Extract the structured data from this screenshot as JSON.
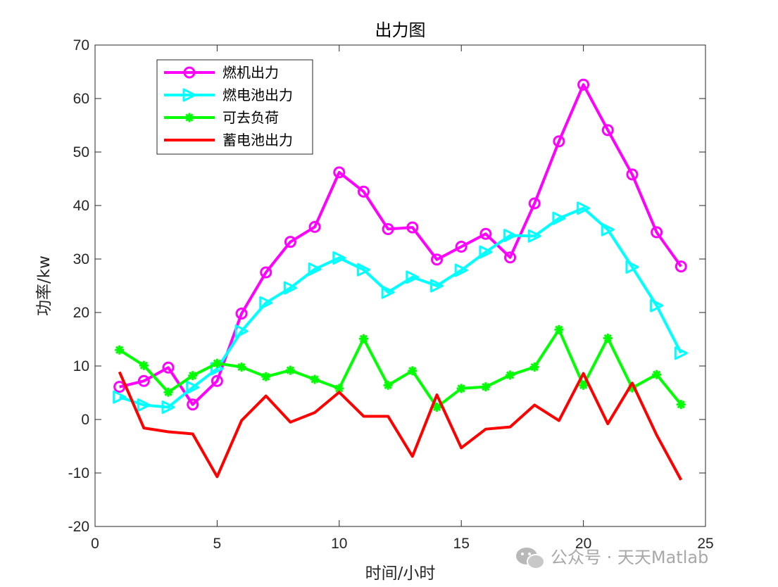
{
  "chart_data": {
    "type": "line",
    "title": "出力图",
    "xlabel": "时间/小时",
    "ylabel": "功率/kw",
    "xlim": [
      0,
      25
    ],
    "ylim": [
      -20,
      70
    ],
    "xticks": [
      0,
      5,
      10,
      15,
      20,
      25
    ],
    "yticks": [
      -20,
      -10,
      0,
      10,
      20,
      30,
      40,
      50,
      60,
      70
    ],
    "grid": false,
    "legend_position": "top-left",
    "x": [
      1,
      2,
      3,
      4,
      5,
      6,
      7,
      8,
      9,
      10,
      11,
      12,
      13,
      14,
      15,
      16,
      17,
      18,
      19,
      20,
      21,
      22,
      23,
      24
    ],
    "series": [
      {
        "name": "燃机出力",
        "color": "#ff00ff",
        "marker": "circle",
        "values": [
          6.1,
          7.2,
          9.7,
          2.8,
          7.2,
          19.8,
          27.5,
          33.2,
          36.0,
          46.2,
          42.6,
          35.6,
          35.9,
          29.9,
          32.3,
          34.7,
          30.3,
          40.4,
          52.0,
          62.6,
          54.1,
          45.8,
          35.0,
          28.6
        ]
      },
      {
        "name": "燃电池出力",
        "color": "#00ffff",
        "marker": "triangle-right",
        "values": [
          4.2,
          2.7,
          2.3,
          6.0,
          9.5,
          16.5,
          21.8,
          24.6,
          28.1,
          30.2,
          28.0,
          23.8,
          26.6,
          25.0,
          27.9,
          31.3,
          34.4,
          34.3,
          37.6,
          39.5,
          35.5,
          28.5,
          21.3,
          12.4
        ]
      },
      {
        "name": "可去负荷",
        "color": "#00ff00",
        "marker": "asterisk",
        "values": [
          13.0,
          10.1,
          5.1,
          8.2,
          10.5,
          9.8,
          8.0,
          9.2,
          7.5,
          5.8,
          15.1,
          6.4,
          9.1,
          2.3,
          5.8,
          6.1,
          8.3,
          9.8,
          16.8,
          6.4,
          15.2,
          5.9,
          8.4,
          2.8
        ]
      },
      {
        "name": "蓄电池出力",
        "color": "#ff0000",
        "marker": "none",
        "values": [
          8.9,
          -1.6,
          -2.3,
          -2.7,
          -10.7,
          -0.2,
          4.4,
          -0.5,
          1.3,
          5.1,
          0.6,
          0.6,
          -6.9,
          4.6,
          -5.3,
          -1.8,
          -1.4,
          2.7,
          -0.2,
          8.6,
          -0.8,
          6.8,
          -2.9,
          -11.3
        ]
      }
    ]
  },
  "watermark": {
    "icon": "wechat-icon",
    "text": "公众号 · 天天Matlab"
  }
}
